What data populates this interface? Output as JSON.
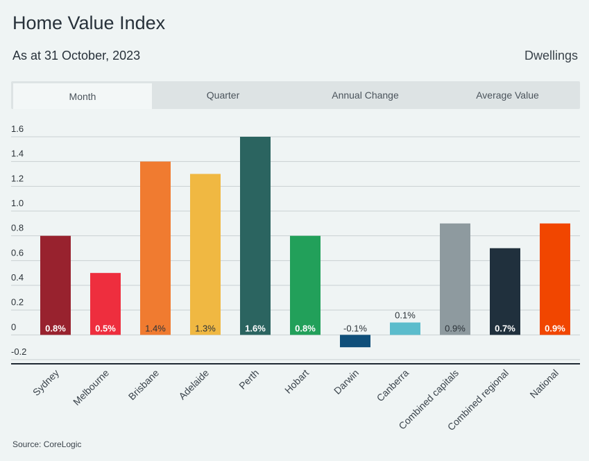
{
  "header": {
    "title": "Home Value Index",
    "subtitle": "As at 31 October, 2023",
    "category": "Dwellings"
  },
  "tabs": [
    {
      "label": "Month",
      "active": true
    },
    {
      "label": "Quarter",
      "active": false
    },
    {
      "label": "Annual Change",
      "active": false
    },
    {
      "label": "Average Value",
      "active": false
    }
  ],
  "chart_data": {
    "type": "bar",
    "categories": [
      "Sydney",
      "Melbourne",
      "Brisbane",
      "Adelaide",
      "Perth",
      "Hobart",
      "Darwin",
      "Canberra",
      "Combined capitals",
      "Combined regional",
      "National"
    ],
    "values": [
      0.8,
      0.5,
      1.4,
      1.3,
      1.6,
      0.8,
      -0.1,
      0.1,
      0.9,
      0.7,
      0.9
    ],
    "data_labels": [
      "0.8%",
      "0.5%",
      "1.4%",
      "1.3%",
      "1.6%",
      "0.8%",
      "-0.1%",
      "0.1%",
      "0.9%",
      "0.7%",
      "0.9%"
    ],
    "colors": [
      "#98222e",
      "#ee2e3e",
      "#f07b30",
      "#f0b842",
      "#2b6460",
      "#22a05a",
      "#0f4f7a",
      "#5bbccc",
      "#8e9a9f",
      "#20303d",
      "#f14600"
    ],
    "label_colors": [
      "#ffffff",
      "#ffffff",
      "#2b3238",
      "#2b3238",
      "#ffffff",
      "#ffffff",
      "#2b3238",
      "#2b3238",
      "#2b3238",
      "#ffffff",
      "#ffffff"
    ],
    "yticks": [
      "1.6",
      "1.4",
      "1.2",
      "1.0",
      "0.8",
      "0.6",
      "0.4",
      "0.2",
      "0",
      "-0.2"
    ],
    "ylim": [
      -0.2,
      1.6
    ],
    "grid": true,
    "xlabel": "",
    "ylabel": ""
  },
  "footer": {
    "source": "Source: CoreLogic"
  }
}
